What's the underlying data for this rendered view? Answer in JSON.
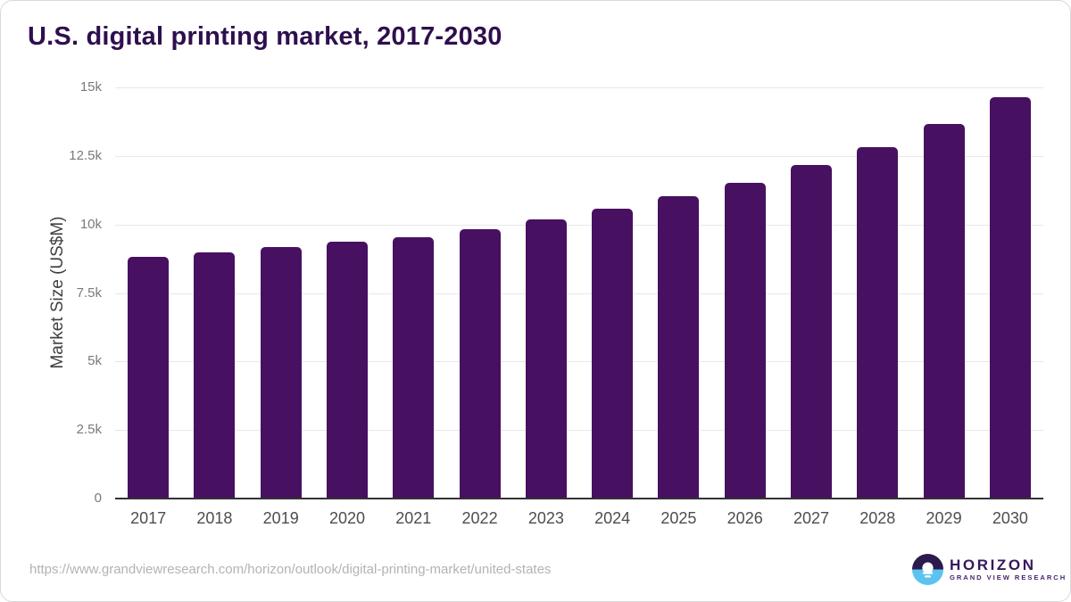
{
  "title": "U.S. digital printing market, 2017-2030",
  "chart_data": {
    "type": "bar",
    "title": "U.S. digital printing market, 2017-2030",
    "xlabel": "",
    "ylabel": "Market Size (US$M)",
    "categories": [
      "2017",
      "2018",
      "2019",
      "2020",
      "2021",
      "2022",
      "2023",
      "2024",
      "2025",
      "2026",
      "2027",
      "2028",
      "2029",
      "2030"
    ],
    "values": [
      8800,
      8950,
      9150,
      9350,
      9500,
      9800,
      10150,
      10550,
      11000,
      11500,
      12150,
      12800,
      13650,
      14600
    ],
    "ylim": [
      0,
      15000
    ],
    "ytick_values": [
      0,
      2500,
      5000,
      7500,
      10000,
      12500,
      15000
    ],
    "ytick_labels": [
      "0",
      "2.5k",
      "5k",
      "7.5k",
      "10k",
      "12.5k",
      "15k"
    ],
    "grid": true,
    "legend": "none",
    "bar_color": "#481061"
  },
  "footer": {
    "source_url": "https://www.grandviewresearch.com/horizon/outlook/digital-printing-market/united-states",
    "logo": {
      "name": "HORIZON",
      "subtitle": "GRAND VIEW RESEARCH",
      "icon": "horizon-sunset-icon",
      "purple": "#2d1a4d",
      "blue": "#5cc3ef"
    }
  },
  "colors": {
    "title_text": "#2e0f4e",
    "bar": "#481061",
    "gridline": "#e8e8e8",
    "axis_line": "#333333",
    "y_tick_text": "#7a7a7a",
    "x_tick_text": "#4d4d4d",
    "url_text": "#b3b3b3"
  }
}
